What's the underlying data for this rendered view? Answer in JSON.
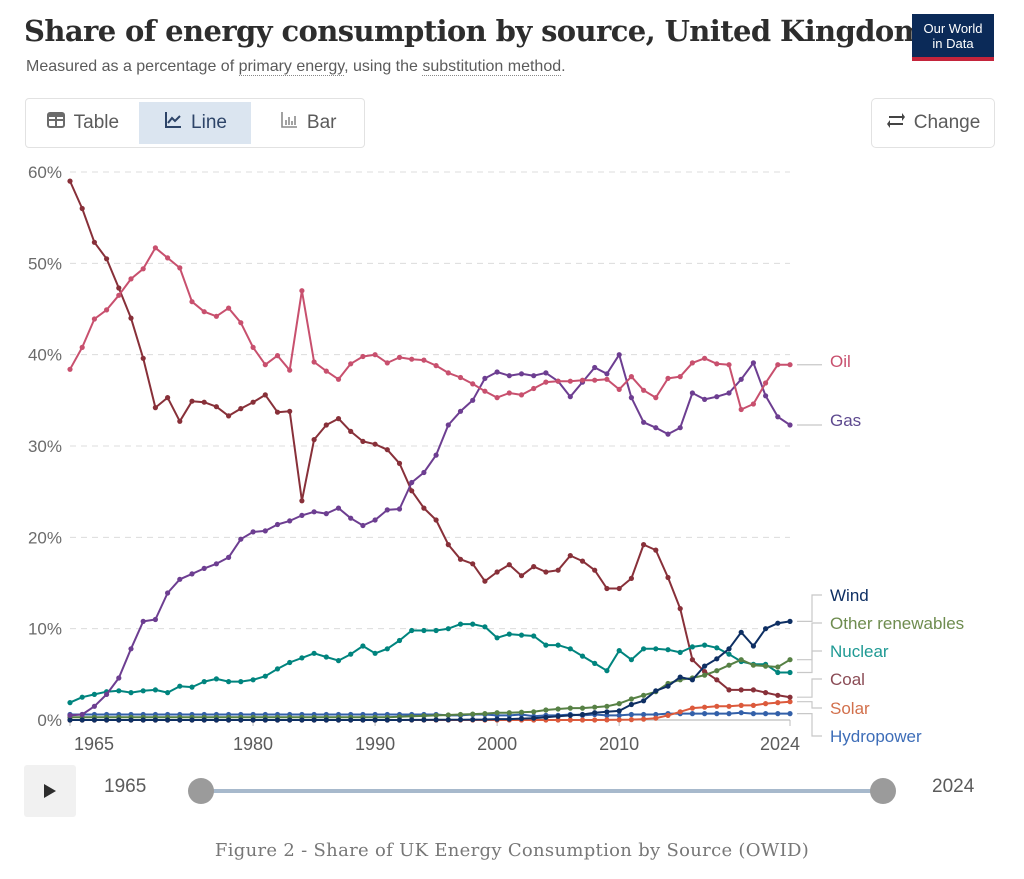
{
  "header": {
    "title": "Share of energy consumption by source, United Kingdom",
    "subtitle_prefix": "Measured as a percentage of ",
    "subtitle_link1": "primary energy",
    "subtitle_mid": ", using the ",
    "subtitle_link2": "substitution method",
    "subtitle_suffix": ".",
    "logo_line1": "Our World",
    "logo_line2": "in Data"
  },
  "toolbar": {
    "tabs": [
      {
        "label": "Table",
        "icon": "table-icon",
        "active": false
      },
      {
        "label": "Line",
        "icon": "line-chart-icon",
        "active": true
      },
      {
        "label": "Bar",
        "icon": "bar-chart-icon",
        "active": false
      }
    ],
    "change_label": "Change",
    "change_icon": "swap-arrows-icon"
  },
  "timeline": {
    "start_label": "1965",
    "end_label": "2024",
    "play_icon": "play-icon"
  },
  "caption": "Figure 2 - Share of UK Energy Consumption by Source (OWID)",
  "chart_data": {
    "type": "line",
    "title": "Share of energy consumption by source, United Kingdom",
    "subtitle": "Measured as a percentage of primary energy, using the substitution method.",
    "xlabel": "",
    "ylabel": "",
    "x_start": 1965,
    "x_end": 2024,
    "xlim": [
      1965,
      2024
    ],
    "ylim": [
      0,
      60
    ],
    "x_ticks": [
      "1965",
      "1980",
      "1990",
      "2000",
      "2010",
      "2024"
    ],
    "y_ticks": [
      "0%",
      "10%",
      "20%",
      "30%",
      "40%",
      "50%",
      "60%"
    ],
    "grid": "horizontal dashed",
    "legend_placement": "right (end-of-line labels)",
    "series": [
      {
        "name": "Oil",
        "color": "#c8506e",
        "values": [
          38.4,
          40.8,
          43.9,
          44.9,
          46.5,
          48.3,
          49.4,
          51.7,
          50.6,
          49.5,
          45.8,
          44.7,
          44.2,
          45.1,
          43.5,
          40.8,
          38.9,
          39.9,
          38.3,
          47.0,
          39.2,
          38.2,
          37.3,
          39.0,
          39.8,
          40.0,
          39.1,
          39.7,
          39.5,
          39.4,
          38.8,
          38.0,
          37.5,
          36.8,
          36.0,
          35.3,
          35.8,
          35.6,
          36.3,
          37.0,
          37.1,
          37.1,
          37.2,
          37.2,
          37.3,
          36.2,
          37.6,
          36.1,
          35.3,
          37.4,
          37.6,
          39.1,
          39.6,
          39.0,
          38.9,
          34.0,
          34.6,
          36.9,
          38.9,
          38.9
        ]
      },
      {
        "name": "Gas",
        "color": "#6d3e91",
        "values": [
          0.5,
          0.6,
          1.5,
          2.8,
          4.6,
          7.8,
          10.8,
          11.0,
          13.9,
          15.4,
          16.0,
          16.6,
          17.1,
          17.8,
          19.8,
          20.6,
          20.7,
          21.4,
          21.8,
          22.4,
          22.8,
          22.6,
          23.2,
          22.1,
          21.3,
          21.9,
          23.0,
          23.1,
          26.0,
          27.1,
          29.0,
          32.3,
          33.8,
          35.0,
          37.4,
          38.1,
          37.7,
          37.9,
          37.7,
          38.0,
          37.1,
          35.4,
          37.0,
          38.6,
          37.9,
          40.0,
          35.3,
          32.6,
          32.0,
          31.3,
          32.0,
          35.8,
          35.1,
          35.4,
          35.8,
          37.3,
          39.1,
          35.5,
          33.2,
          32.3
        ]
      },
      {
        "name": "Wind",
        "color": "#0e2f63",
        "values": [
          0,
          0,
          0,
          0,
          0,
          0,
          0,
          0,
          0,
          0,
          0,
          0,
          0,
          0,
          0,
          0,
          0,
          0,
          0,
          0,
          0,
          0,
          0,
          0,
          0,
          0,
          0,
          0,
          0.01,
          0.01,
          0.02,
          0.02,
          0.03,
          0.04,
          0.05,
          0.1,
          0.1,
          0.15,
          0.2,
          0.3,
          0.4,
          0.5,
          0.6,
          0.8,
          0.9,
          1.0,
          1.7,
          2.1,
          3.2,
          3.7,
          4.7,
          4.4,
          5.9,
          6.7,
          7.8,
          9.6,
          8.1,
          10.0,
          10.6,
          10.8
        ]
      },
      {
        "name": "Other renewables",
        "color": "#578145",
        "values": [
          0.3,
          0.3,
          0.3,
          0.3,
          0.3,
          0.3,
          0.3,
          0.3,
          0.3,
          0.3,
          0.3,
          0.3,
          0.3,
          0.3,
          0.3,
          0.3,
          0.3,
          0.3,
          0.3,
          0.3,
          0.3,
          0.3,
          0.3,
          0.3,
          0.3,
          0.3,
          0.3,
          0.35,
          0.4,
          0.45,
          0.5,
          0.55,
          0.6,
          0.65,
          0.7,
          0.8,
          0.8,
          0.85,
          0.9,
          1.1,
          1.2,
          1.3,
          1.3,
          1.4,
          1.5,
          1.8,
          2.3,
          2.7,
          3.1,
          4.0,
          4.4,
          4.6,
          4.9,
          5.4,
          6.0,
          6.6,
          6.0,
          5.9,
          5.8,
          6.6
        ]
      },
      {
        "name": "Nuclear",
        "color": "#00847e",
        "values": [
          1.9,
          2.5,
          2.8,
          3.1,
          3.2,
          3.0,
          3.2,
          3.3,
          3.0,
          3.7,
          3.6,
          4.2,
          4.5,
          4.2,
          4.2,
          4.4,
          4.8,
          5.6,
          6.3,
          6.8,
          7.3,
          6.9,
          6.5,
          7.2,
          8.1,
          7.3,
          7.8,
          8.7,
          9.8,
          9.8,
          9.8,
          10.0,
          10.5,
          10.5,
          10.2,
          9.0,
          9.4,
          9.3,
          9.2,
          8.2,
          8.2,
          7.8,
          7.0,
          6.2,
          5.4,
          7.6,
          6.6,
          7.8,
          7.8,
          7.7,
          7.4,
          8.0,
          8.2,
          7.9,
          7.2,
          6.4,
          6.1,
          6.1,
          5.2,
          5.2
        ]
      },
      {
        "name": "Coal",
        "color": "#883039",
        "values": [
          59.0,
          56.0,
          52.3,
          50.5,
          47.3,
          44.0,
          39.6,
          34.2,
          35.3,
          32.7,
          34.9,
          34.8,
          34.3,
          33.3,
          34.1,
          34.8,
          35.6,
          33.7,
          33.8,
          24.0,
          30.7,
          32.3,
          33.0,
          31.6,
          30.5,
          30.2,
          29.6,
          28.1,
          25.1,
          23.2,
          21.9,
          19.2,
          17.6,
          17.1,
          15.2,
          16.2,
          17.0,
          15.8,
          16.8,
          16.2,
          16.4,
          18.0,
          17.4,
          16.4,
          14.4,
          14.4,
          15.5,
          19.2,
          18.6,
          15.6,
          12.2,
          6.6,
          5.3,
          4.4,
          3.3,
          3.3,
          3.3,
          3.0,
          2.7,
          2.5
        ]
      },
      {
        "name": "Solar",
        "color": "#dc5a3c",
        "values": [
          0,
          0,
          0,
          0,
          0,
          0,
          0,
          0,
          0,
          0,
          0,
          0,
          0,
          0,
          0,
          0,
          0,
          0,
          0,
          0,
          0,
          0,
          0,
          0,
          0,
          0,
          0,
          0,
          0,
          0,
          0,
          0,
          0,
          0,
          0,
          0,
          0,
          0,
          0,
          0,
          0,
          0,
          0,
          0,
          0.01,
          0.02,
          0.04,
          0.1,
          0.2,
          0.5,
          0.9,
          1.3,
          1.4,
          1.5,
          1.5,
          1.6,
          1.6,
          1.8,
          1.9,
          2.0
        ]
      },
      {
        "name": "Hydropower",
        "color": "#3360a9",
        "values": [
          0.6,
          0.6,
          0.6,
          0.6,
          0.6,
          0.6,
          0.6,
          0.6,
          0.6,
          0.6,
          0.6,
          0.6,
          0.6,
          0.6,
          0.6,
          0.6,
          0.6,
          0.6,
          0.6,
          0.6,
          0.6,
          0.6,
          0.6,
          0.6,
          0.6,
          0.6,
          0.6,
          0.6,
          0.6,
          0.6,
          0.6,
          0.5,
          0.5,
          0.6,
          0.6,
          0.5,
          0.5,
          0.6,
          0.4,
          0.5,
          0.5,
          0.6,
          0.5,
          0.6,
          0.5,
          0.5,
          0.6,
          0.6,
          0.6,
          0.7,
          0.7,
          0.7,
          0.7,
          0.7,
          0.7,
          0.8,
          0.7,
          0.7,
          0.7,
          0.7
        ]
      }
    ]
  }
}
